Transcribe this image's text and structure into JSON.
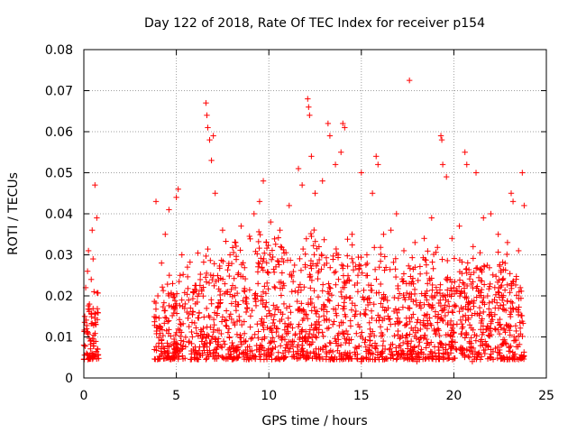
{
  "chart_data": {
    "type": "scatter",
    "title": "Day 122 of 2018, Rate Of TEC Index for receiver p154",
    "xlabel": "GPS time / hours",
    "ylabel": "ROTI / TECUs",
    "xlim": [
      0,
      25
    ],
    "ylim": [
      0,
      0.08
    ],
    "x_ticks": [
      0,
      5,
      10,
      15,
      20,
      25
    ],
    "y_ticks": [
      0,
      0.01,
      0.02,
      0.03,
      0.04,
      0.05,
      0.06,
      0.07,
      0.08
    ],
    "x_tick_labels": [
      "0",
      "5",
      "10",
      "15",
      "20",
      "25"
    ],
    "y_tick_labels": [
      "0",
      "0.01",
      "0.02",
      "0.03",
      "0.04",
      "0.05",
      "0.06",
      "0.07",
      "0.08"
    ],
    "grid": true,
    "marker": "plus",
    "color": "#ff0000",
    "data_coverage_hours": [
      [
        0,
        0.8
      ],
      [
        3.8,
        23.8
      ]
    ],
    "series": [
      {
        "points": [
          [
            0.0,
            0.008
          ],
          [
            0.05,
            0.015
          ],
          [
            0.1,
            0.022
          ],
          [
            0.15,
            0.012
          ],
          [
            0.2,
            0.026
          ],
          [
            0.25,
            0.031
          ],
          [
            0.3,
            0.018
          ],
          [
            0.35,
            0.009
          ],
          [
            0.4,
            0.024
          ],
          [
            0.45,
            0.036
          ],
          [
            0.5,
            0.029
          ],
          [
            0.55,
            0.021
          ],
          [
            0.6,
            0.047
          ],
          [
            0.65,
            0.013
          ],
          [
            0.7,
            0.039
          ],
          [
            0.75,
            0.007
          ],
          [
            3.9,
            0.043
          ],
          [
            4.0,
            0.02
          ],
          [
            4.1,
            0.012
          ],
          [
            4.2,
            0.028
          ],
          [
            4.4,
            0.035
          ],
          [
            4.6,
            0.041
          ],
          [
            4.8,
            0.023
          ],
          [
            5.0,
            0.044
          ],
          [
            5.1,
            0.046
          ],
          [
            5.3,
            0.03
          ],
          [
            5.6,
            0.027
          ],
          [
            5.9,
            0.021
          ],
          [
            6.6,
            0.067
          ],
          [
            6.65,
            0.064
          ],
          [
            6.7,
            0.061
          ],
          [
            6.8,
            0.058
          ],
          [
            6.9,
            0.053
          ],
          [
            7.0,
            0.059
          ],
          [
            7.1,
            0.045
          ],
          [
            7.5,
            0.036
          ],
          [
            7.9,
            0.03
          ],
          [
            8.2,
            0.033
          ],
          [
            8.5,
            0.037
          ],
          [
            9.2,
            0.04
          ],
          [
            9.5,
            0.043
          ],
          [
            9.7,
            0.048
          ],
          [
            10.1,
            0.038
          ],
          [
            10.6,
            0.036
          ],
          [
            11.1,
            0.042
          ],
          [
            11.6,
            0.051
          ],
          [
            11.8,
            0.047
          ],
          [
            12.1,
            0.068
          ],
          [
            12.15,
            0.066
          ],
          [
            12.2,
            0.064
          ],
          [
            12.3,
            0.054
          ],
          [
            12.5,
            0.045
          ],
          [
            12.9,
            0.048
          ],
          [
            13.2,
            0.062
          ],
          [
            13.3,
            0.059
          ],
          [
            13.6,
            0.052
          ],
          [
            13.9,
            0.055
          ],
          [
            14.0,
            0.062
          ],
          [
            14.1,
            0.061
          ],
          [
            14.5,
            0.035
          ],
          [
            15.0,
            0.05
          ],
          [
            15.3,
            0.03
          ],
          [
            15.6,
            0.045
          ],
          [
            15.8,
            0.054
          ],
          [
            15.9,
            0.052
          ],
          [
            16.2,
            0.035
          ],
          [
            16.6,
            0.036
          ],
          [
            16.9,
            0.04
          ],
          [
            17.3,
            0.031
          ],
          [
            17.6,
            0.0725
          ],
          [
            17.9,
            0.033
          ],
          [
            18.4,
            0.034
          ],
          [
            18.8,
            0.039
          ],
          [
            19.3,
            0.059
          ],
          [
            19.35,
            0.058
          ],
          [
            19.4,
            0.052
          ],
          [
            19.6,
            0.049
          ],
          [
            19.9,
            0.034
          ],
          [
            20.3,
            0.037
          ],
          [
            20.6,
            0.055
          ],
          [
            20.7,
            0.052
          ],
          [
            21.2,
            0.05
          ],
          [
            21.6,
            0.039
          ],
          [
            22.0,
            0.04
          ],
          [
            22.4,
            0.035
          ],
          [
            22.9,
            0.033
          ],
          [
            23.1,
            0.045
          ],
          [
            23.2,
            0.043
          ],
          [
            23.5,
            0.031
          ],
          [
            23.7,
            0.05
          ],
          [
            23.8,
            0.042
          ],
          [
            0.3,
            0.005
          ],
          [
            4.5,
            0.005
          ],
          [
            6.0,
            0.005
          ],
          [
            9.0,
            0.005
          ],
          [
            12.0,
            0.005
          ],
          [
            15.0,
            0.004
          ],
          [
            18.0,
            0.004
          ],
          [
            21.0,
            0.004
          ],
          [
            23.7,
            0.005
          ]
        ],
        "density_profile": [
          [
            0.0,
            0.015
          ],
          [
            0.8,
            0.02
          ],
          [
            3.8,
            0.02
          ],
          [
            4.5,
            0.023
          ],
          [
            5.5,
            0.026
          ],
          [
            6.5,
            0.03
          ],
          [
            7.5,
            0.032
          ],
          [
            8.5,
            0.033
          ],
          [
            9.5,
            0.032
          ],
          [
            10.5,
            0.033
          ],
          [
            11.5,
            0.03
          ],
          [
            12.5,
            0.034
          ],
          [
            13.5,
            0.033
          ],
          [
            14.5,
            0.031
          ],
          [
            15.5,
            0.032
          ],
          [
            16.5,
            0.029
          ],
          [
            17.5,
            0.027
          ],
          [
            18.5,
            0.031
          ],
          [
            19.5,
            0.03
          ],
          [
            20.5,
            0.026
          ],
          [
            21.5,
            0.032
          ],
          [
            22.5,
            0.029
          ],
          [
            23.5,
            0.025
          ],
          [
            23.8,
            0.022
          ]
        ]
      }
    ]
  }
}
